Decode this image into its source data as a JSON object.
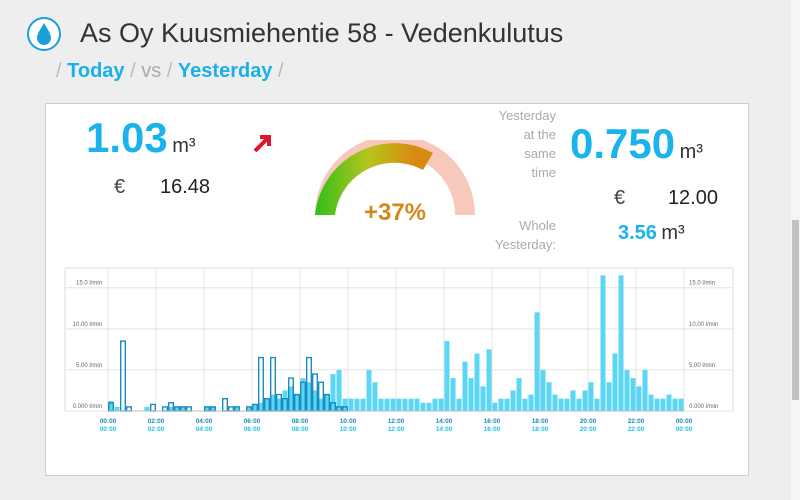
{
  "header": {
    "title": "As Oy Kuusmiehentie 58 - Vedenkulutus",
    "nav": [
      "/",
      "Today",
      "/",
      "vs",
      "/",
      "Yesterday",
      "/"
    ]
  },
  "today": {
    "volume": "1.03",
    "unit": "m³",
    "currency": "€",
    "cost": "16.48"
  },
  "comparison": {
    "change": "+37%"
  },
  "yesterday": {
    "same_time_label": [
      "Yesterday",
      "at the",
      "same",
      "time"
    ],
    "volume": "0.750",
    "unit": "m³",
    "currency": "€",
    "cost": "12.00",
    "whole_label": [
      "Whole",
      "Yesterday:"
    ],
    "whole_volume": "3.56",
    "whole_unit": "m³"
  },
  "chart": {
    "xlim": [
      0,
      24
    ],
    "ylim": [
      0,
      17.4
    ],
    "yticks": [
      {
        "value": 0,
        "label": "0.000 l/min"
      },
      {
        "value": 5,
        "label": "5.00 l/min"
      },
      {
        "value": 10,
        "label": "10.00 l/min"
      },
      {
        "value": 15,
        "label": "15.0 l/min"
      }
    ],
    "xticks": [
      {
        "value": 0,
        "label": "00:00"
      },
      {
        "value": 2,
        "label": "02:00"
      },
      {
        "value": 4,
        "label": "04:00"
      },
      {
        "value": 6,
        "label": "06:00"
      },
      {
        "value": 8,
        "label": "08:00"
      },
      {
        "value": 10,
        "label": "10:00"
      },
      {
        "value": 12,
        "label": "12:00"
      },
      {
        "value": 14,
        "label": "14:00"
      },
      {
        "value": 16,
        "label": "16:00"
      },
      {
        "value": 18,
        "label": "18:00"
      },
      {
        "value": 20,
        "label": "20:00"
      },
      {
        "value": 22,
        "label": "22:00"
      },
      {
        "value": 24,
        "label": "00:00"
      }
    ],
    "series": [
      {
        "color": "#5ad6f6",
        "values": [
          1.2,
          0.5,
          0,
          0,
          0,
          0,
          0.5,
          0,
          0,
          0,
          0.5,
          0.5,
          0.5,
          0,
          0,
          0,
          0.5,
          0.5,
          0,
          0,
          0,
          0.5,
          0,
          0.5,
          0.8,
          1.0,
          1.5,
          2.0,
          1.5,
          2.5,
          3.0,
          2.0,
          4.0,
          3.5,
          2.5,
          1.5,
          2.0,
          4.5,
          5.0,
          1.5,
          1.5,
          1.5,
          1.5,
          5.0,
          3.5,
          1.5,
          1.5,
          1.5,
          1.5,
          1.5,
          1.5,
          1.5,
          1.0,
          1.0,
          1.5,
          1.5,
          8.5,
          4.0,
          1.5,
          6.0,
          4.0,
          7.0,
          3.0,
          7.5,
          1.0,
          1.5,
          1.5,
          2.5,
          4.0,
          1.5,
          2.0,
          12.0,
          5.0,
          3.5,
          2.0,
          1.5,
          1.5,
          2.5,
          1.5,
          2.5,
          3.5,
          1.5,
          16.5,
          3.5,
          7.0,
          16.5,
          5.0,
          4.0,
          3.0,
          5.0,
          2.0,
          1.5,
          1.5,
          2.0,
          1.5,
          1.5
        ]
      },
      {
        "color": "#1a8cc0",
        "values": [
          1.0,
          0,
          8.5,
          0.5,
          0,
          0,
          0,
          0.8,
          0,
          0.5,
          1.0,
          0.5,
          0.5,
          0.5,
          0,
          0,
          0.5,
          0.5,
          0,
          1.5,
          0.5,
          0.5,
          0,
          0.5,
          0.8,
          6.5,
          1.5,
          6.5,
          2.0,
          1.5,
          4.0,
          2.0,
          3.5,
          6.5,
          4.5,
          3.5,
          2.0,
          1.0,
          0.5,
          0.5
        ]
      }
    ]
  }
}
